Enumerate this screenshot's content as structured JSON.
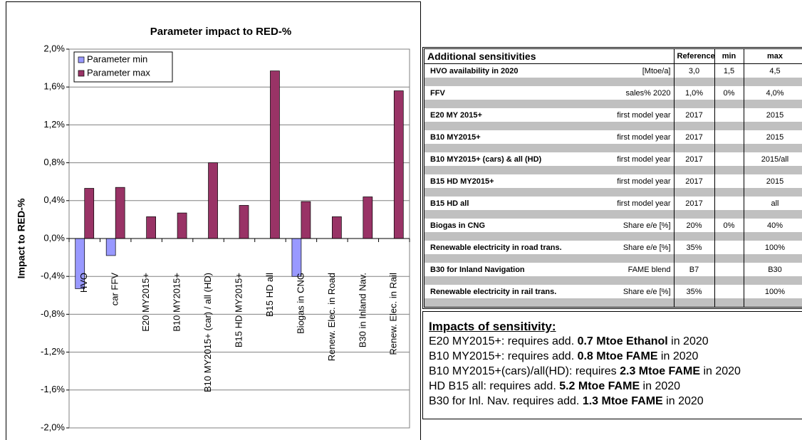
{
  "chart_data": {
    "type": "bar",
    "title": "Parameter impact to RED-%",
    "y_label": "Impact to RED-%",
    "categories": [
      "HVO",
      "car FFV",
      "E20 MY2015+",
      "B10 MY2015+",
      "B10 MY2015+ (car) / all (HD)",
      "B15 HD MY2015+",
      "B15 HD all",
      "Biogas in CNG",
      "Renew. Elec. in Road",
      "B30 in Inland Nav.",
      "Renew. Elec. in Rail"
    ],
    "series": [
      {
        "name": "Parameter min",
        "color": "#9999ff",
        "values": [
          -0.53,
          -0.18,
          null,
          null,
          null,
          null,
          null,
          -0.4,
          null,
          null,
          null
        ]
      },
      {
        "name": "Parameter max",
        "color": "#993366",
        "values": [
          0.53,
          0.54,
          0.23,
          0.27,
          0.8,
          0.35,
          1.77,
          0.39,
          0.23,
          0.44,
          1.56
        ]
      }
    ],
    "ylim": [
      -2.0,
      2.0
    ],
    "yticks": [
      {
        "value": -2.0,
        "label": "-2,0%"
      },
      {
        "value": -1.6,
        "label": "-1,6%"
      },
      {
        "value": -1.2,
        "label": "-1,2%"
      },
      {
        "value": -0.8,
        "label": "-0,8%"
      },
      {
        "value": -0.4,
        "label": "-0,4%"
      },
      {
        "value": 0,
        "label": "0,0%"
      },
      {
        "value": 0.4,
        "label": "0,4%"
      },
      {
        "value": 0.8,
        "label": "0,8%"
      },
      {
        "value": 1.2,
        "label": "1,2%"
      },
      {
        "value": 1.6,
        "label": "1,6%"
      },
      {
        "value": 2.0,
        "label": "2,0%"
      }
    ],
    "grid": true,
    "legend": "top-left"
  },
  "table": {
    "header": [
      "Additional sensitivities",
      null,
      "Reference",
      "min",
      "max"
    ],
    "rows": [
      [
        "HVO availability in 2020",
        "[Mtoe/a]",
        "3,0",
        "1,5",
        "4,5"
      ],
      [
        "FFV",
        "sales% 2020",
        "1,0%",
        "0%",
        "4,0%"
      ],
      [
        "E20 MY 2015+",
        "first model year",
        "2017",
        null,
        "2015"
      ],
      [
        "B10 MY2015+",
        "first model year",
        "2017",
        null,
        "2015"
      ],
      [
        "B10 MY2015+ (cars) & all (HD)",
        "first model year",
        "2017",
        null,
        "2015/all"
      ],
      [
        "B15 HD MY2015+",
        "first model year",
        "2017",
        null,
        "2015"
      ],
      [
        "B15 HD all",
        "first model year",
        "2017",
        null,
        "all"
      ],
      [
        "Biogas in CNG",
        "Share e/e [%]",
        "20%",
        "0%",
        "40%"
      ],
      [
        "Renewable electricity in road trans.",
        "Share e/e [%]",
        "35%",
        null,
        "100%"
      ],
      [
        "B30 for Inland Navigation",
        "FAME blend",
        "B7",
        null,
        "B30"
      ],
      [
        "Renewable electricity in rail trans.",
        "Share e/e [%]",
        "35%",
        null,
        "100%"
      ]
    ]
  },
  "notes": {
    "title": "Impacts of sensitivity:",
    "lines": [
      [
        {
          "text": "E20 MY2015+: requires add. "
        },
        {
          "text": "0.7 Mtoe Ethanol",
          "bold": true
        },
        {
          "text": " in 2020"
        }
      ],
      [
        {
          "text": "B10 MY2015+: requires add. "
        },
        {
          "text": "0.8 Mtoe FAME",
          "bold": true
        },
        {
          "text": " in 2020"
        }
      ],
      [
        {
          "text": "B10 MY2015+(cars)/all(HD): requires "
        },
        {
          "text": "2.3 Mtoe FAME",
          "bold": true
        },
        {
          "text": " in 2020"
        }
      ],
      [
        {
          "text": "HD B15 all: requires add. "
        },
        {
          "text": "5.2 Mtoe FAME",
          "bold": true
        },
        {
          "text": " in 2020"
        }
      ],
      [
        {
          "text": "B30 for Inl. Nav. requires add. "
        },
        {
          "text": "1.3 Mtoe FAME",
          "bold": true
        },
        {
          "text": " in 2020"
        }
      ]
    ]
  }
}
